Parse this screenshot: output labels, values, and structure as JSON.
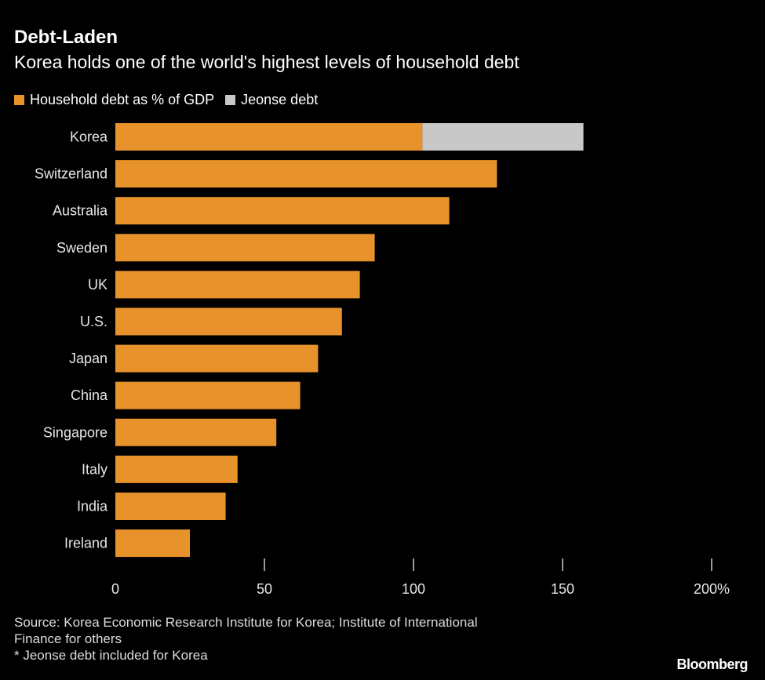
{
  "title": "Debt-Laden",
  "subtitle": "Korea holds one of the world's highest levels of household debt",
  "source_line1": "Source: Korea Economic Research Institute for Korea; Institute of International",
  "source_line2": "Finance for others",
  "footnote": "* Jeonse debt included for Korea",
  "logo": "Bloomberg",
  "chart_data": {
    "type": "bar",
    "orientation": "horizontal",
    "stacked": true,
    "categories": [
      "Korea",
      "Switzerland",
      "Australia",
      "Sweden",
      "UK",
      "U.S.",
      "Japan",
      "China",
      "Singapore",
      "Italy",
      "India",
      "Ireland"
    ],
    "series": [
      {
        "name": "Household debt as % of GDP",
        "color": "#e8922b",
        "values": [
          103,
          128,
          112,
          87,
          82,
          76,
          68,
          62,
          54,
          41,
          37,
          25
        ]
      },
      {
        "name": "Jeonse debt",
        "color": "#c8c8c8",
        "values": [
          54,
          0,
          0,
          0,
          0,
          0,
          0,
          0,
          0,
          0,
          0,
          0
        ]
      }
    ],
    "xlim": [
      0,
      200
    ],
    "xticks": [
      0,
      50,
      100,
      150,
      200
    ],
    "xtick_labels": [
      "0",
      "50",
      "100",
      "150",
      "200%"
    ],
    "legend": "top-left",
    "grid": false
  }
}
